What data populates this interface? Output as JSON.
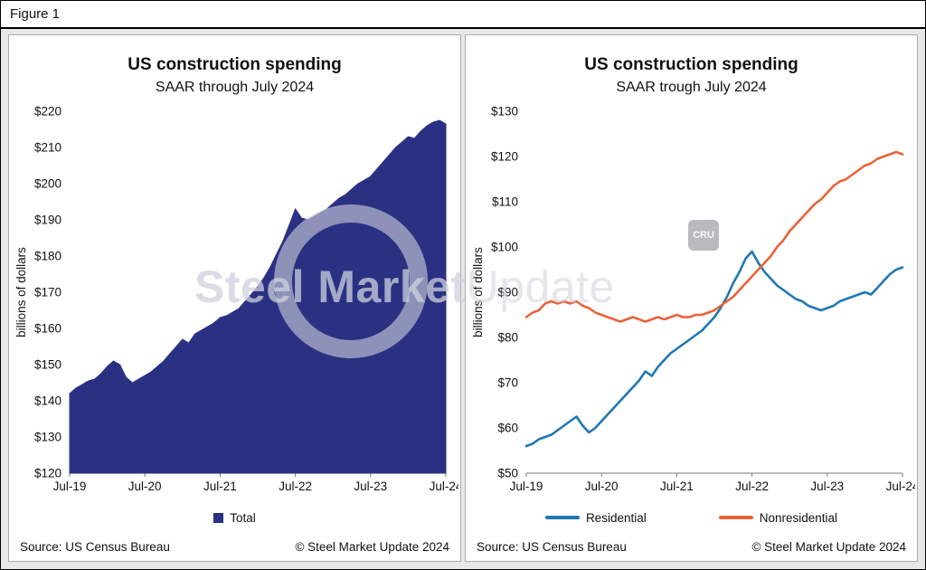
{
  "figure_label": "Figure 1",
  "watermark": {
    "bold": "Steel Market",
    "light": "Update"
  },
  "chart_data": [
    {
      "type": "area",
      "title": "US construction spending",
      "subtitle": "SAAR through July 2024",
      "ylabel": "billions of dollars",
      "ymin": 120,
      "ymax": 220,
      "ystep": 10,
      "y_tick_prefix": "$",
      "x_ticks": [
        "Jul-19",
        "Jul-20",
        "Jul-21",
        "Jul-22",
        "Jul-23",
        "Jul-24"
      ],
      "series": [
        {
          "name": "Total",
          "color": "#2b3182",
          "values": [
            142,
            143.5,
            144.5,
            145.5,
            146,
            147.5,
            149.5,
            151,
            150,
            146.5,
            145,
            146,
            147,
            148,
            149.5,
            151,
            153,
            155,
            157,
            156,
            158.5,
            159.5,
            160.5,
            161.5,
            163,
            163.5,
            164.5,
            165.5,
            167.5,
            169.5,
            171.5,
            174,
            177,
            180.5,
            184,
            188.5,
            193,
            190.5,
            190,
            191,
            192,
            193,
            194.5,
            196,
            197,
            198.5,
            200,
            201,
            202,
            204,
            206,
            208,
            210,
            211.5,
            213,
            212.5,
            214.5,
            216,
            217,
            217.5,
            216.5
          ]
        }
      ],
      "legend": [
        {
          "label": "Total",
          "color": "#2b3182",
          "marker": "square"
        }
      ],
      "source": "Source: US Census Bureau",
      "copyright": "© Steel Market Update 2024"
    },
    {
      "type": "line",
      "title": "US construction spending",
      "subtitle": "SAAR trough July 2024",
      "ylabel": "billions of dollars",
      "ymin": 50,
      "ymax": 130,
      "ystep": 10,
      "y_tick_prefix": "$",
      "x_ticks": [
        "Jul-19",
        "Jul-20",
        "Jul-21",
        "Jul-22",
        "Jul-23",
        "Jul-24"
      ],
      "watermark_badge": "CRU",
      "series": [
        {
          "name": "Residential",
          "color": "#2077b4",
          "values": [
            56,
            56.5,
            57.5,
            58,
            58.5,
            59.5,
            60.5,
            61.5,
            62.5,
            60.5,
            59,
            60,
            61.5,
            63,
            64.5,
            66,
            67.5,
            69,
            70.5,
            72.5,
            71.5,
            73.5,
            75,
            76.5,
            77.5,
            78.5,
            79.5,
            80.5,
            81.5,
            83,
            84.5,
            86.5,
            89,
            92,
            94.5,
            97.5,
            99,
            96.5,
            94.5,
            93,
            91.5,
            90.5,
            89.5,
            88.5,
            88,
            87,
            86.5,
            86,
            86.5,
            87,
            88,
            88.5,
            89,
            89.5,
            90,
            89.5,
            91,
            92.5,
            94,
            95,
            95.5
          ]
        },
        {
          "name": "Nonresidential",
          "color": "#e8633b",
          "values": [
            84.5,
            85.5,
            86,
            87.5,
            88,
            87.5,
            88,
            87.5,
            88,
            87,
            86.5,
            85.5,
            85,
            84.5,
            84,
            83.5,
            84,
            84.5,
            84,
            83.5,
            84,
            84.5,
            84,
            84.5,
            85,
            84.5,
            84.5,
            85,
            85,
            85.5,
            86,
            87,
            88,
            89,
            90.5,
            92,
            93.5,
            95,
            96.5,
            98,
            100,
            101.5,
            103.5,
            105,
            106.5,
            108,
            109.5,
            110.5,
            112,
            113.5,
            114.5,
            115,
            116,
            117,
            118,
            118.5,
            119.5,
            120,
            120.5,
            121,
            120.5
          ]
        }
      ],
      "legend": [
        {
          "label": "Residential",
          "color": "#2077b4",
          "marker": "line"
        },
        {
          "label": "Nonresidential",
          "color": "#e8633b",
          "marker": "line"
        }
      ],
      "source": "Source: US Census Bureau",
      "copyright": "© Steel Market Update 2024"
    }
  ]
}
